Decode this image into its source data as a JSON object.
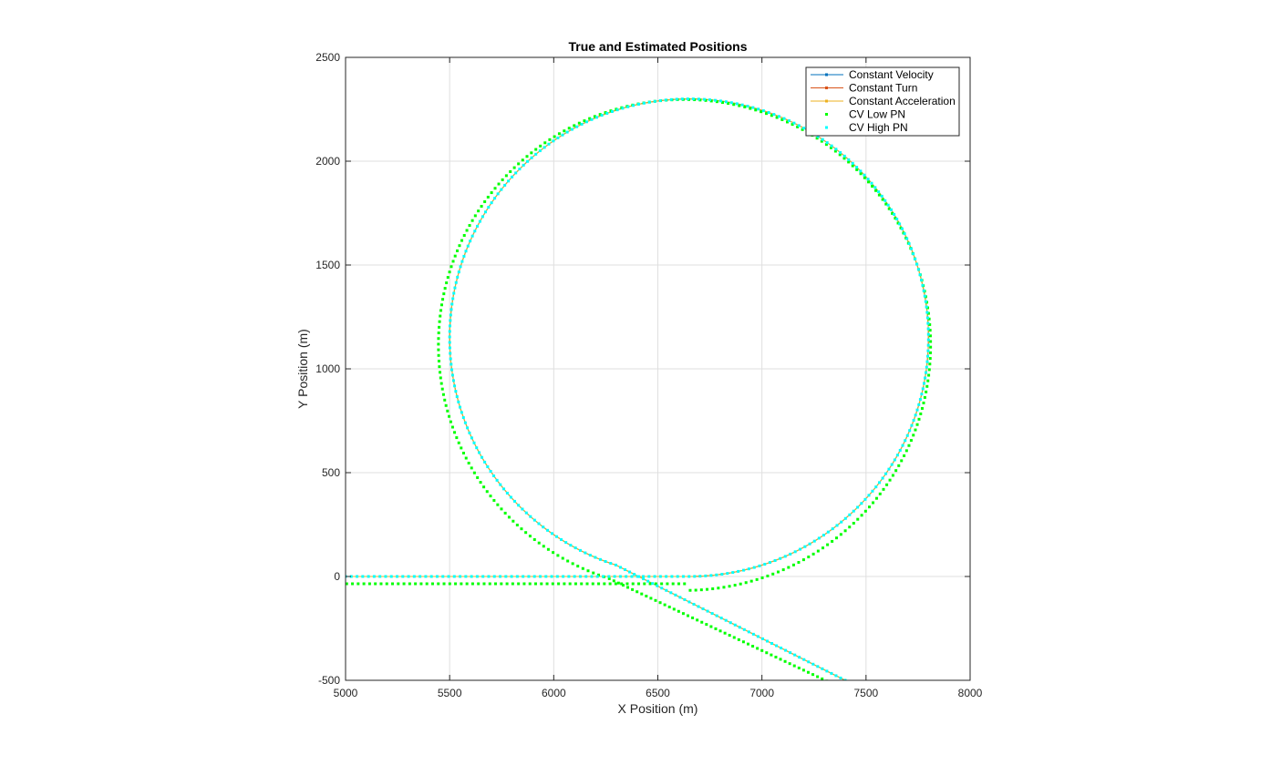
{
  "chart_data": {
    "type": "line",
    "title": "True and Estimated Positions",
    "xlabel": "X Position (m)",
    "ylabel": "Y Position (m)",
    "xlim": [
      5000,
      8000
    ],
    "ylim": [
      -500,
      2500
    ],
    "xticks": [
      5000,
      5500,
      6000,
      6500,
      7000,
      7500,
      8000
    ],
    "yticks": [
      -500,
      0,
      500,
      1000,
      1500,
      2000,
      2500
    ],
    "grid": true,
    "legend_location": "top-right",
    "trajectory": {
      "straight_start": [
        [
          5000,
          0
        ],
        [
          6650,
          0
        ]
      ],
      "circle": {
        "center": [
          6650,
          1150
        ],
        "radius": 1150
      },
      "exit": [
        [
          6300,
          60
        ],
        [
          7400,
          -500
        ]
      ]
    },
    "series": [
      {
        "name": "Constant Velocity",
        "color": "#0072BD",
        "style": "line-marker"
      },
      {
        "name": "Constant Turn",
        "color": "#D95319",
        "style": "line-marker"
      },
      {
        "name": "Constant Acceleration",
        "color": "#EDB120",
        "style": "line-marker"
      },
      {
        "name": "CV Low PN",
        "color": "#00FF00",
        "style": "marker",
        "radius_offset": 32,
        "shift": [
          -5,
          8
        ]
      },
      {
        "name": "CV High PN",
        "color": "#00FFFF",
        "style": "marker",
        "radius_offset": 0,
        "shift": [
          0,
          0
        ]
      }
    ]
  }
}
